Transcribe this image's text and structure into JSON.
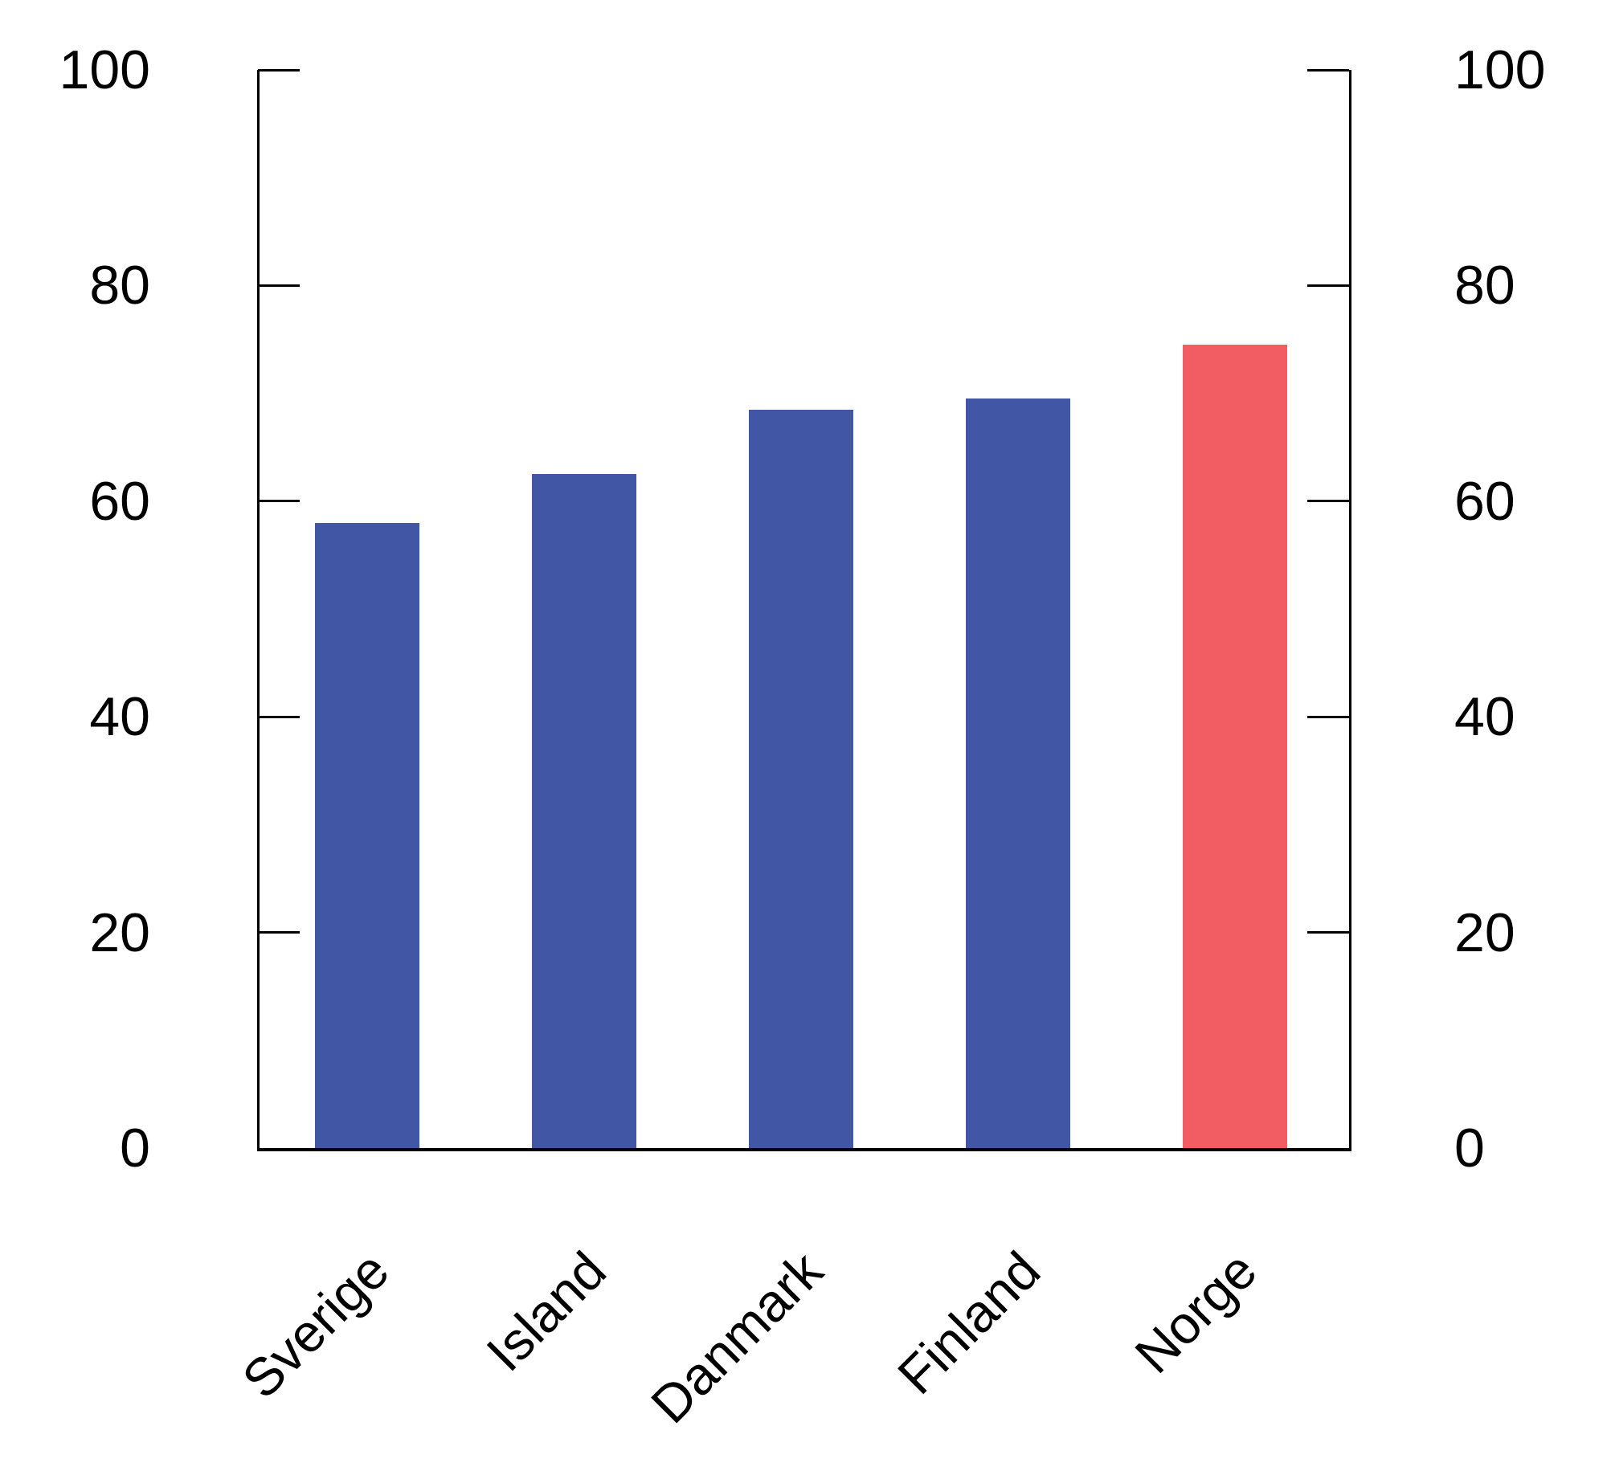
{
  "chart_data": {
    "type": "bar",
    "title": "",
    "xlabel": "",
    "ylabel": "",
    "categories": [
      "Sverige",
      "Island",
      "Danmark",
      "Finland",
      "Norge"
    ],
    "values": [
      58,
      62.5,
      68.5,
      69.5,
      74.5
    ],
    "bar_colors": [
      "#4156A4",
      "#4156A4",
      "#4156A4",
      "#4156A4",
      "#F15D63"
    ],
    "default_color": "#4156A4",
    "highlight_category": "Norge",
    "highlight_color": "#F15D63",
    "ylim": [
      0,
      100
    ],
    "yticks": [
      0,
      20,
      40,
      60,
      80,
      100
    ],
    "ytick_labels": [
      "0",
      "20",
      "40",
      "60",
      "80",
      "100"
    ],
    "axes": {
      "left_axis": true,
      "right_axis": true,
      "left_tick_labels": true,
      "right_tick_labels": true,
      "grid": false,
      "legend": false,
      "xtick_label_rotation_deg": 45
    }
  },
  "colors": {
    "background": "#FFFFFF",
    "axis": "#000000",
    "text": "#000000"
  }
}
